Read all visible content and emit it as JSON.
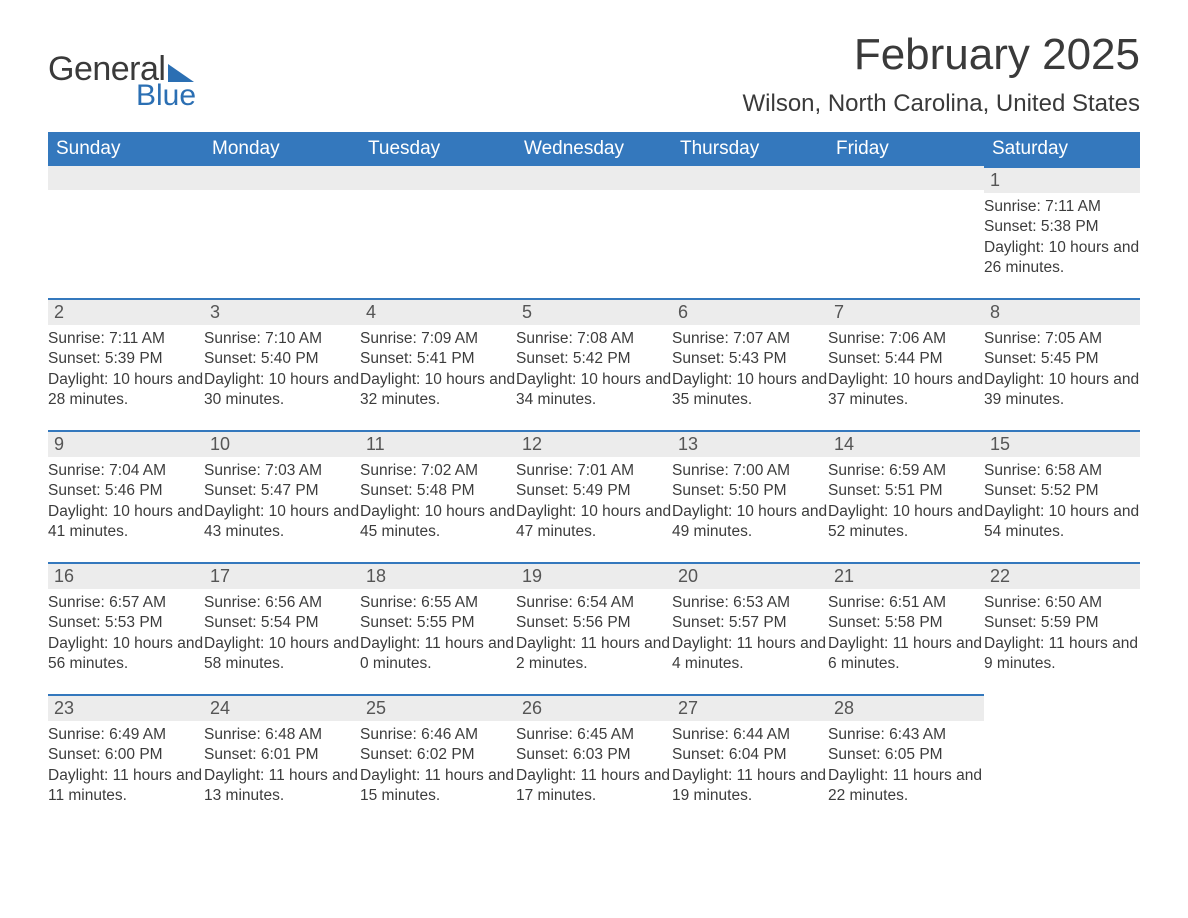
{
  "brand": {
    "part1": "General",
    "part2": "Blue"
  },
  "title": "February 2025",
  "location": "Wilson, North Carolina, United States",
  "colors": {
    "header_bg": "#3478bd",
    "header_fg": "#ffffff",
    "daynum_bg": "#ececec",
    "rule": "#3478bd",
    "text": "#3c3c3c",
    "logo_blue": "#2b6fb3"
  },
  "layout": {
    "columns": 7,
    "rows": 5,
    "col_width_pct": 14.2857
  },
  "dow": [
    "Sunday",
    "Monday",
    "Tuesday",
    "Wednesday",
    "Thursday",
    "Friday",
    "Saturday"
  ],
  "weeks": [
    [
      null,
      null,
      null,
      null,
      null,
      null,
      {
        "d": "1",
        "sr": "Sunrise: 7:11 AM",
        "ss": "Sunset: 5:38 PM",
        "dl": "Daylight: 10 hours and 26 minutes."
      }
    ],
    [
      {
        "d": "2",
        "sr": "Sunrise: 7:11 AM",
        "ss": "Sunset: 5:39 PM",
        "dl": "Daylight: 10 hours and 28 minutes."
      },
      {
        "d": "3",
        "sr": "Sunrise: 7:10 AM",
        "ss": "Sunset: 5:40 PM",
        "dl": "Daylight: 10 hours and 30 minutes."
      },
      {
        "d": "4",
        "sr": "Sunrise: 7:09 AM",
        "ss": "Sunset: 5:41 PM",
        "dl": "Daylight: 10 hours and 32 minutes."
      },
      {
        "d": "5",
        "sr": "Sunrise: 7:08 AM",
        "ss": "Sunset: 5:42 PM",
        "dl": "Daylight: 10 hours and 34 minutes."
      },
      {
        "d": "6",
        "sr": "Sunrise: 7:07 AM",
        "ss": "Sunset: 5:43 PM",
        "dl": "Daylight: 10 hours and 35 minutes."
      },
      {
        "d": "7",
        "sr": "Sunrise: 7:06 AM",
        "ss": "Sunset: 5:44 PM",
        "dl": "Daylight: 10 hours and 37 minutes."
      },
      {
        "d": "8",
        "sr": "Sunrise: 7:05 AM",
        "ss": "Sunset: 5:45 PM",
        "dl": "Daylight: 10 hours and 39 minutes."
      }
    ],
    [
      {
        "d": "9",
        "sr": "Sunrise: 7:04 AM",
        "ss": "Sunset: 5:46 PM",
        "dl": "Daylight: 10 hours and 41 minutes."
      },
      {
        "d": "10",
        "sr": "Sunrise: 7:03 AM",
        "ss": "Sunset: 5:47 PM",
        "dl": "Daylight: 10 hours and 43 minutes."
      },
      {
        "d": "11",
        "sr": "Sunrise: 7:02 AM",
        "ss": "Sunset: 5:48 PM",
        "dl": "Daylight: 10 hours and 45 minutes."
      },
      {
        "d": "12",
        "sr": "Sunrise: 7:01 AM",
        "ss": "Sunset: 5:49 PM",
        "dl": "Daylight: 10 hours and 47 minutes."
      },
      {
        "d": "13",
        "sr": "Sunrise: 7:00 AM",
        "ss": "Sunset: 5:50 PM",
        "dl": "Daylight: 10 hours and 49 minutes."
      },
      {
        "d": "14",
        "sr": "Sunrise: 6:59 AM",
        "ss": "Sunset: 5:51 PM",
        "dl": "Daylight: 10 hours and 52 minutes."
      },
      {
        "d": "15",
        "sr": "Sunrise: 6:58 AM",
        "ss": "Sunset: 5:52 PM",
        "dl": "Daylight: 10 hours and 54 minutes."
      }
    ],
    [
      {
        "d": "16",
        "sr": "Sunrise: 6:57 AM",
        "ss": "Sunset: 5:53 PM",
        "dl": "Daylight: 10 hours and 56 minutes."
      },
      {
        "d": "17",
        "sr": "Sunrise: 6:56 AM",
        "ss": "Sunset: 5:54 PM",
        "dl": "Daylight: 10 hours and 58 minutes."
      },
      {
        "d": "18",
        "sr": "Sunrise: 6:55 AM",
        "ss": "Sunset: 5:55 PM",
        "dl": "Daylight: 11 hours and 0 minutes."
      },
      {
        "d": "19",
        "sr": "Sunrise: 6:54 AM",
        "ss": "Sunset: 5:56 PM",
        "dl": "Daylight: 11 hours and 2 minutes."
      },
      {
        "d": "20",
        "sr": "Sunrise: 6:53 AM",
        "ss": "Sunset: 5:57 PM",
        "dl": "Daylight: 11 hours and 4 minutes."
      },
      {
        "d": "21",
        "sr": "Sunrise: 6:51 AM",
        "ss": "Sunset: 5:58 PM",
        "dl": "Daylight: 11 hours and 6 minutes."
      },
      {
        "d": "22",
        "sr": "Sunrise: 6:50 AM",
        "ss": "Sunset: 5:59 PM",
        "dl": "Daylight: 11 hours and 9 minutes."
      }
    ],
    [
      {
        "d": "23",
        "sr": "Sunrise: 6:49 AM",
        "ss": "Sunset: 6:00 PM",
        "dl": "Daylight: 11 hours and 11 minutes."
      },
      {
        "d": "24",
        "sr": "Sunrise: 6:48 AM",
        "ss": "Sunset: 6:01 PM",
        "dl": "Daylight: 11 hours and 13 minutes."
      },
      {
        "d": "25",
        "sr": "Sunrise: 6:46 AM",
        "ss": "Sunset: 6:02 PM",
        "dl": "Daylight: 11 hours and 15 minutes."
      },
      {
        "d": "26",
        "sr": "Sunrise: 6:45 AM",
        "ss": "Sunset: 6:03 PM",
        "dl": "Daylight: 11 hours and 17 minutes."
      },
      {
        "d": "27",
        "sr": "Sunrise: 6:44 AM",
        "ss": "Sunset: 6:04 PM",
        "dl": "Daylight: 11 hours and 19 minutes."
      },
      {
        "d": "28",
        "sr": "Sunrise: 6:43 AM",
        "ss": "Sunset: 6:05 PM",
        "dl": "Daylight: 11 hours and 22 minutes."
      },
      null
    ]
  ]
}
